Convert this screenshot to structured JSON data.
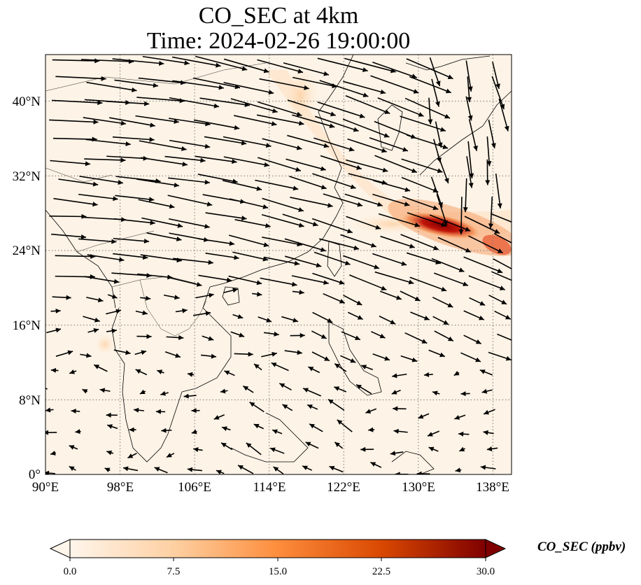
{
  "title": {
    "line1": "CO_SEC at 4km",
    "line2": "Time: 2024-02-26 19:00:00"
  },
  "map": {
    "type": "gridded concentration with wind vectors",
    "lon_range": [
      90,
      140
    ],
    "lat_range": [
      0,
      45
    ],
    "lon_ticks": [
      "90°E",
      "98°E",
      "106°E",
      "114°E",
      "122°E",
      "130°E",
      "138°E"
    ],
    "lat_ticks": [
      "0°",
      "8°N",
      "16°N",
      "24°N",
      "32°N",
      "40°N"
    ],
    "gridlines": true,
    "plume_max": {
      "lon": 132,
      "lat": 26.5,
      "value": 30
    }
  },
  "colorbar": {
    "label": "CO_SEC (ppbv)",
    "ticks": [
      "0.0",
      "7.5",
      "15.0",
      "22.5",
      "30.0"
    ],
    "range": [
      0,
      30
    ],
    "extend": "both",
    "colors": [
      "#fff5eb",
      "#fdd0a2",
      "#fd8d3c",
      "#d94801",
      "#7f0000"
    ]
  }
}
